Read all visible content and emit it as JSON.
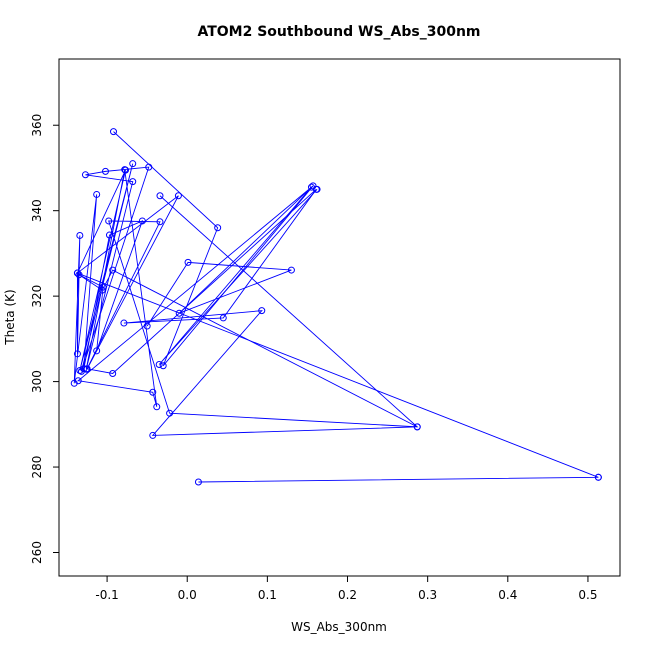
{
  "chart_data": {
    "type": "line",
    "title": "ATOM2 Southbound WS_Abs_300nm",
    "xlabel": "WS_Abs_300nm",
    "ylabel": "Theta (K)",
    "xlim": [
      -0.16,
      0.54
    ],
    "ylim": [
      254.5,
      375.5
    ],
    "x_ticks": [
      -0.1,
      0.0,
      0.1,
      0.2,
      0.3,
      0.4,
      0.5
    ],
    "x_tick_labels": [
      "-0.1",
      "0.0",
      "0.1",
      "0.2",
      "0.3",
      "0.4",
      "0.5"
    ],
    "y_ticks": [
      260,
      280,
      300,
      320,
      340,
      360
    ],
    "y_tick_labels": [
      "260",
      "280",
      "300",
      "320",
      "340",
      "360"
    ],
    "grid": false,
    "series_color": "#0000ff",
    "marker": "open-circle",
    "series": [
      {
        "points": [
          [
            -0.092,
            358.5
          ],
          [
            0.038,
            336.0
          ],
          [
            -0.03,
            303.7
          ],
          [
            0.157,
            345.8
          ],
          [
            -0.136,
            300.2
          ],
          [
            -0.043,
            297.5
          ],
          [
            -0.038,
            294.1
          ],
          [
            -0.078,
            349.6
          ],
          [
            -0.126,
            302.9
          ],
          [
            -0.068,
            346.8
          ],
          [
            -0.127,
            348.4
          ],
          [
            -0.102,
            349.2
          ],
          [
            -0.048,
            350.2
          ],
          [
            -0.132,
            302.4
          ],
          [
            -0.068,
            351.0
          ],
          [
            -0.134,
            302.6
          ],
          [
            -0.077,
            349.5
          ],
          [
            -0.137,
            325.4
          ],
          [
            -0.137,
            306.5
          ],
          [
            -0.134,
            334.2
          ],
          [
            -0.141,
            299.6
          ],
          [
            -0.113,
            343.8
          ],
          [
            -0.129,
            303.0
          ],
          [
            -0.097,
            334.3
          ],
          [
            -0.056,
            337.6
          ],
          [
            -0.113,
            307.2
          ],
          [
            -0.105,
            322.1
          ],
          [
            -0.135,
            325.0
          ],
          [
            -0.106,
            321.4
          ],
          [
            -0.093,
            326.1
          ],
          [
            0.287,
            289.4
          ],
          [
            -0.022,
            292.6
          ],
          [
            -0.098,
            337.6
          ],
          [
            -0.034,
            337.4
          ],
          [
            -0.125,
            303.0
          ],
          [
            -0.093,
            301.9
          ],
          [
            0.161,
            345.0
          ],
          [
            0.045,
            314.9
          ],
          [
            -0.079,
            313.7
          ],
          [
            0.093,
            316.6
          ],
          [
            -0.043,
            287.4
          ],
          [
            0.287,
            289.4
          ],
          [
            -0.034,
            343.5
          ]
        ]
      },
      {
        "points": [
          [
            -0.125,
            302.9
          ],
          [
            -0.011,
            343.5
          ],
          [
            -0.137,
            325.4
          ],
          [
            0.513,
            277.6
          ],
          [
            0.014,
            276.5
          ],
          [
            0.513,
            277.6
          ]
        ]
      },
      {
        "points": [
          [
            -0.05,
            313.0
          ],
          [
            0.001,
            327.9
          ],
          [
            0.13,
            326.1
          ],
          [
            -0.01,
            316.0
          ],
          [
            0.155,
            345.5
          ],
          [
            -0.035,
            304.0
          ],
          [
            0.162,
            345.0
          ]
        ]
      }
    ]
  }
}
